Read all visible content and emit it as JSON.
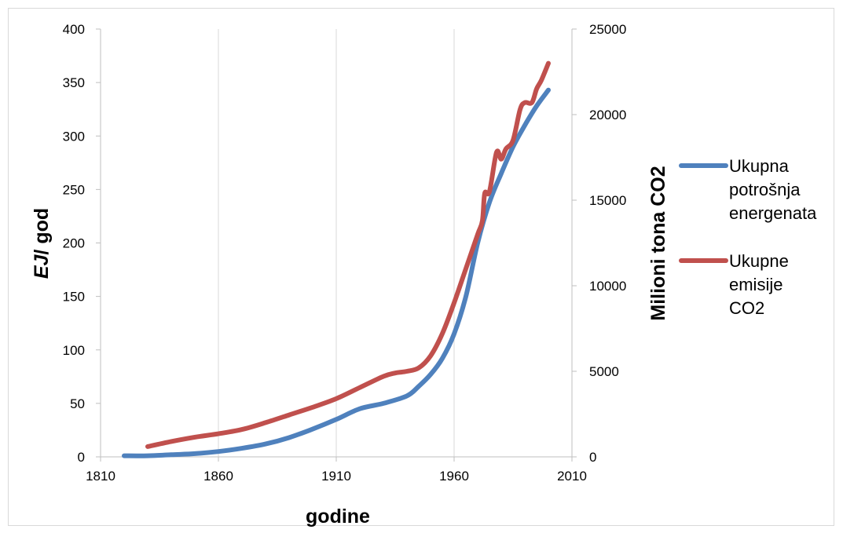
{
  "chart_data": {
    "type": "line",
    "title": "",
    "xlabel": "godine",
    "ylabel_left_prefix": "EJ",
    "ylabel_left_suffix": "/ god",
    "ylabel_right": "Milioni tona CO2",
    "xlim": [
      1810,
      2010
    ],
    "xticks": [
      1810,
      1860,
      1910,
      1960,
      2010
    ],
    "ylim_left": [
      0,
      400
    ],
    "yticks_left": [
      0,
      50,
      100,
      150,
      200,
      250,
      300,
      350,
      400
    ],
    "ylim_right": [
      0,
      25000
    ],
    "yticks_right": [
      0,
      5000,
      10000,
      15000,
      20000,
      25000
    ],
    "grid": "vertical",
    "legend_position": "right",
    "series": [
      {
        "name_lines": [
          "Ukupna",
          "potrošnja",
          "energenata"
        ],
        "axis": "left",
        "color": "#4f81bd",
        "x": [
          1820,
          1830,
          1840,
          1850,
          1860,
          1870,
          1880,
          1890,
          1900,
          1910,
          1920,
          1930,
          1940,
          1945,
          1950,
          1955,
          1960,
          1965,
          1970,
          1975,
          1980,
          1985,
          1990,
          1995,
          2000
        ],
        "y": [
          1,
          1,
          2,
          3,
          5,
          8,
          12,
          18,
          26,
          35,
          45,
          50,
          57,
          66,
          77,
          92,
          115,
          150,
          200,
          238,
          265,
          290,
          310,
          328,
          343
        ]
      },
      {
        "name_lines": [
          "Ukupne",
          "emisije",
          "CO2"
        ],
        "axis": "right",
        "color": "#c0504d",
        "x": [
          1830,
          1840,
          1850,
          1860,
          1870,
          1880,
          1890,
          1900,
          1910,
          1920,
          1930,
          1935,
          1940,
          1945,
          1950,
          1955,
          1960,
          1965,
          1970,
          1972,
          1973,
          1975,
          1978,
          1980,
          1982,
          1985,
          1988,
          1990,
          1993,
          1995,
          1997,
          2000
        ],
        "y": [
          600,
          900,
          1150,
          1350,
          1600,
          2000,
          2450,
          2900,
          3400,
          4050,
          4700,
          4900,
          5000,
          5200,
          5900,
          7200,
          9000,
          11000,
          13000,
          13800,
          15400,
          15500,
          17800,
          17400,
          18000,
          18500,
          20300,
          20700,
          20700,
          21500,
          22000,
          23000
        ]
      }
    ]
  }
}
